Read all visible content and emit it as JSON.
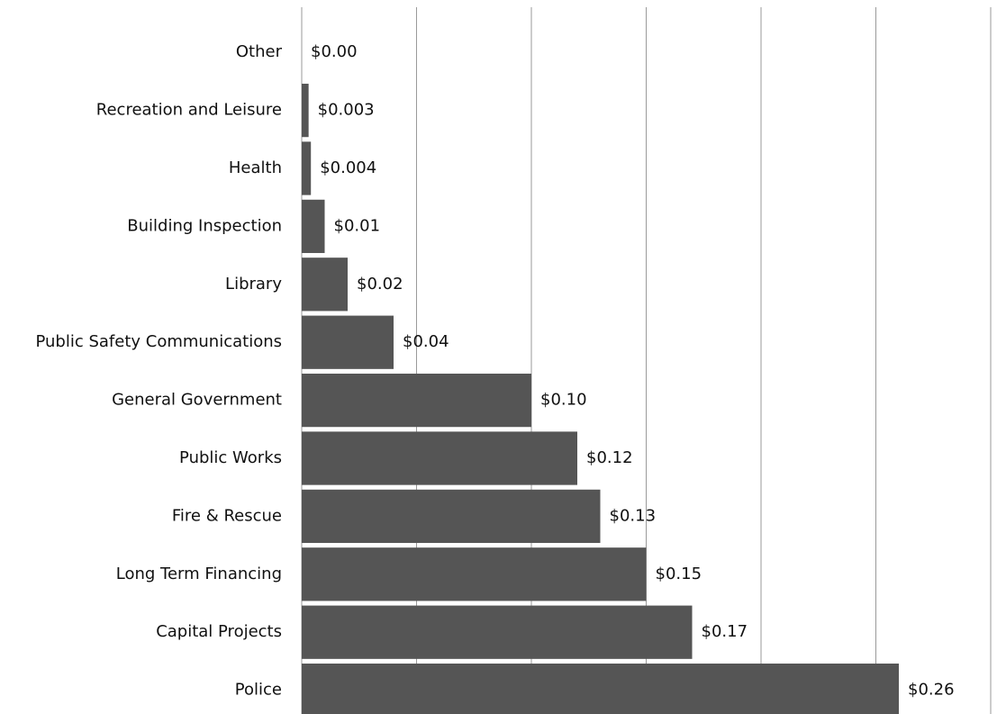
{
  "chart_data": {
    "type": "barh",
    "categories": [
      "Other",
      "Recreation and Leisure",
      "Health",
      "Building Inspection",
      "Library",
      "Public Safety Communications",
      "General Government",
      "Public Works",
      "Fire & Rescue",
      "Long Term Financing",
      "Capital Projects",
      "Police"
    ],
    "values": [
      0,
      0.003,
      0.004,
      0.01,
      0.02,
      0.04,
      0.1,
      0.12,
      0.13,
      0.15,
      0.17,
      0.26
    ],
    "value_labels": [
      "$0.00",
      "$0.003",
      "$0.004",
      "$0.01",
      "$0.02",
      "$0.04",
      "$0.10",
      "$0.12",
      "$0.13",
      "$0.15",
      "$0.17",
      "$0.26"
    ],
    "color": "#555555",
    "xlim": [
      0,
      0.3
    ],
    "xticks": [
      0,
      0.05,
      0.1,
      0.15,
      0.2,
      0.25,
      0.3
    ],
    "grid": true
  }
}
